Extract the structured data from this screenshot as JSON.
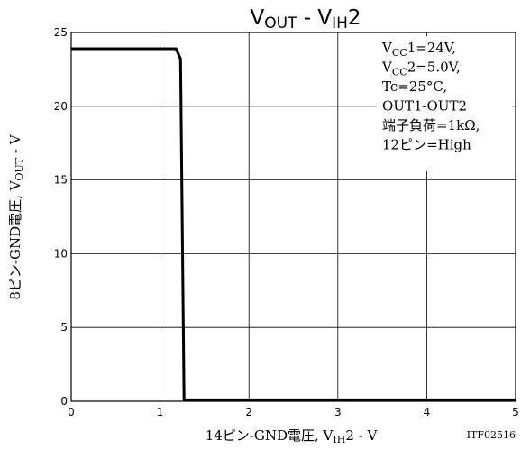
{
  "chart_data": {
    "type": "line",
    "title": {
      "main": "V",
      "sub1": "OUT",
      "mid": " - V",
      "sub2": "IH",
      "tail": "2"
    },
    "xlabel": {
      "pre": "14ピン-GND電圧, V",
      "sub": "IH",
      "post": "2 - V"
    },
    "ylabel": {
      "pre": "8ピン-GND電圧, V",
      "sub": "OUT",
      "post": " - V"
    },
    "xlim": [
      0,
      5
    ],
    "ylim": [
      0,
      25
    ],
    "x_ticks": [
      "0",
      "1",
      "2",
      "3",
      "4",
      "5"
    ],
    "y_ticks": [
      "0",
      "5",
      "10",
      "15",
      "20",
      "25"
    ],
    "grid": true,
    "series": [
      {
        "x": [
          0,
          1.18,
          1.23,
          1.27,
          5
        ],
        "y": [
          23.9,
          23.9,
          23.2,
          0.1,
          0.1
        ]
      }
    ],
    "conditions": [
      {
        "pre": "V",
        "sub": "CC",
        "post": "1=24V,"
      },
      {
        "pre": "V",
        "sub": "CC",
        "post": "2=5.0V,"
      },
      {
        "pre": "Tc=25°C,",
        "sub": "",
        "post": ""
      },
      {
        "pre": "OUT1-OUT2",
        "sub": "",
        "post": ""
      },
      {
        "pre": "端子負荷=1kΩ,",
        "sub": "",
        "post": ""
      },
      {
        "pre": "12ピン=High",
        "sub": "",
        "post": ""
      }
    ],
    "figure_code": "ITF02516"
  }
}
